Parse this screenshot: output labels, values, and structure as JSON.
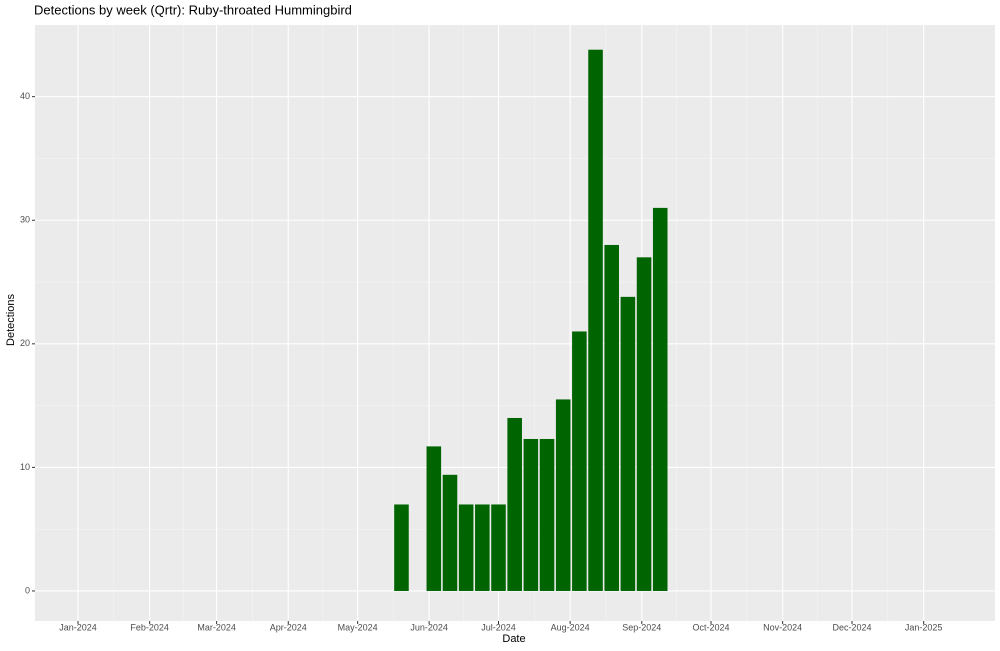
{
  "chart_data": {
    "type": "bar",
    "title": "Detections by week (Qrtr): Ruby-throated Hummingbird",
    "x_label": "Date",
    "y_label": "Detections",
    "x": [
      20,
      22,
      23,
      24,
      25,
      26,
      27,
      28,
      29,
      30,
      31,
      32,
      33,
      34,
      35,
      36
    ],
    "values": [
      7,
      11.7,
      9.4,
      7,
      7,
      7,
      14,
      12.3,
      12.3,
      15.5,
      21,
      43.8,
      28,
      23.8,
      27,
      31
    ],
    "color": "#006400",
    "xlim": [
      -2.66,
      56.7
    ],
    "xticks": [
      {
        "value": 0,
        "label": "Jan-2024"
      },
      {
        "value": 4.43,
        "label": "Feb-2024"
      },
      {
        "value": 8.57,
        "label": "Mar-2024"
      },
      {
        "value": 13,
        "label": "Apr-2024"
      },
      {
        "value": 17.29,
        "label": "May-2024"
      },
      {
        "value": 21.71,
        "label": "Jun-2024"
      },
      {
        "value": 26,
        "label": "Jul-2024"
      },
      {
        "value": 30.43,
        "label": "Aug-2024"
      },
      {
        "value": 34.86,
        "label": "Sep-2024"
      },
      {
        "value": 39.14,
        "label": "Oct-2024"
      },
      {
        "value": 43.57,
        "label": "Nov-2024"
      },
      {
        "value": 47.86,
        "label": "Dec-2024"
      },
      {
        "value": 52.29,
        "label": "Jan-2025"
      }
    ],
    "ylim": [
      -2.43,
      45.8
    ],
    "yticks": [
      0,
      10,
      20,
      30,
      40
    ],
    "grid": true
  }
}
